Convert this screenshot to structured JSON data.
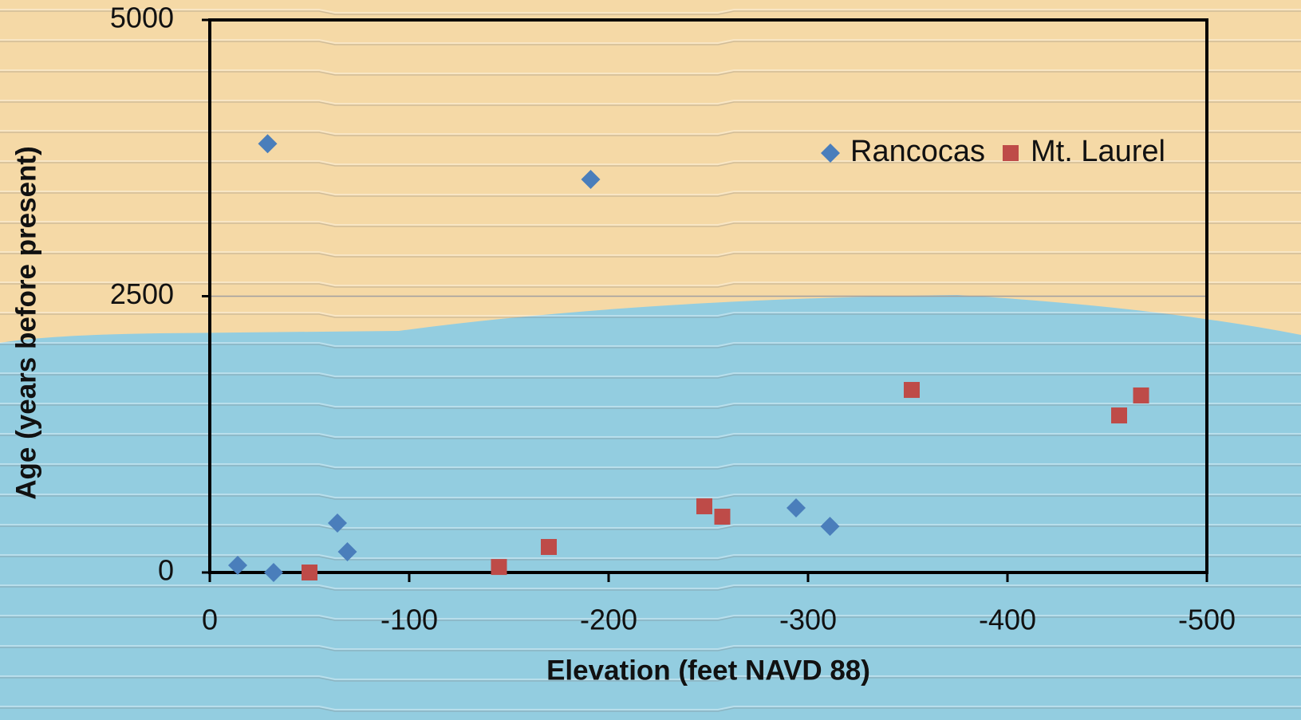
{
  "chart_data": {
    "type": "scatter",
    "xlabel": "Elevation (feet NAVD 88)",
    "ylabel": "Age (years before  present)",
    "xlim": [
      0,
      -500
    ],
    "xticks": [
      0,
      -100,
      -200,
      -300,
      -400,
      -500
    ],
    "ylim": [
      0,
      5000
    ],
    "yticks": [
      0,
      2500,
      5000
    ],
    "grid": true,
    "legend": "top-right",
    "series": [
      {
        "name": "Rancocas",
        "color": "#4a7ebb",
        "marker": "diamond",
        "x": [
          -14,
          -29,
          -32,
          -64,
          -69,
          -191,
          -294,
          -311
        ],
        "values": [
          65,
          3880,
          0,
          447,
          188,
          3557,
          584,
          418
        ]
      },
      {
        "name": "Mt. Laurel",
        "color": "#be4b48",
        "marker": "square",
        "x": [
          -50,
          -145,
          -170,
          -248,
          -257,
          -352,
          -456,
          -467
        ],
        "values": [
          0,
          50,
          231,
          599,
          505,
          1652,
          1421,
          1602
        ]
      }
    ]
  }
}
